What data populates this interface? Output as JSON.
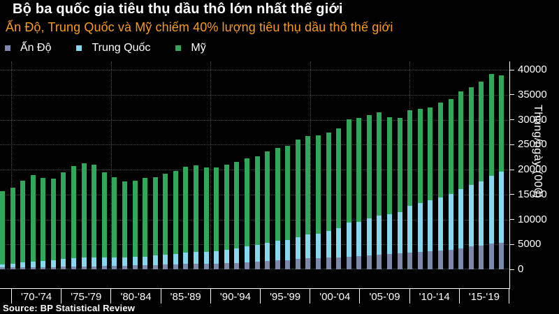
{
  "header": {
    "title": "Bộ ba quốc gia tiêu thụ dầu thô lớn nhất thế giới",
    "subtitle": "Ấn Độ, Trung Quốc và Mỹ chiếm 40% lượng tiêu thụ dầu thô thế giới"
  },
  "legend": [
    {
      "label": "Ấn Độ",
      "color": "#7d89aa"
    },
    {
      "label": "Trung Quốc",
      "color": "#87d7ee"
    },
    {
      "label": "Mỹ",
      "color": "#2fa85c"
    }
  ],
  "source": "Source: BP Statistical Review",
  "colors": {
    "background": "#000000",
    "title": "#ffffff",
    "subtitle_orange": "#f79b1c",
    "axis": "#ffffff",
    "gridline": "#4a4a4a"
  },
  "chart_data": {
    "type": "bar",
    "stacked": true,
    "title": "Bộ ba quốc gia tiêu thụ dầu thô lớn nhất thế giới",
    "ylabel": "Thùng/ngày (000)",
    "ylim": [
      0,
      41600
    ],
    "grid": true,
    "legend_position": "top-left",
    "years": {
      "start": 1970,
      "end": 2019
    },
    "x_tick_labels": [
      "'70-'74",
      "'75-'79",
      "'80-'84",
      "'85-'89",
      "'90-'94",
      "'95-'99",
      "'00-'04",
      "'05-'09",
      "'10-'14",
      "'15-'19"
    ],
    "y_ticks": [
      0,
      5000,
      10000,
      15000,
      20000,
      25000,
      30000,
      35000,
      40000
    ],
    "series": [
      {
        "name": "Ấn Độ",
        "color": "#7d89aa",
        "values": [
          388,
          413,
          444,
          478,
          480,
          490,
          520,
          550,
          590,
          630,
          643,
          700,
          740,
          780,
          820,
          895,
          940,
          990,
          1060,
          1130,
          1168,
          1190,
          1255,
          1300,
          1400,
          1575,
          1680,
          1765,
          1885,
          2075,
          2261,
          2290,
          2374,
          2420,
          2570,
          2606,
          2737,
          2941,
          3077,
          3237,
          3319,
          3488,
          3685,
          3727,
          3849,
          4164,
          4560,
          4766,
          5156,
          5271
        ]
      },
      {
        "name": "Trung Quốc",
        "color": "#87d7ee",
        "values": [
          616,
          776,
          912,
          1089,
          1230,
          1364,
          1530,
          1700,
          1825,
          1805,
          1765,
          1705,
          1660,
          1730,
          1740,
          1885,
          1975,
          2120,
          2275,
          2380,
          2320,
          2500,
          2662,
          2960,
          3160,
          3390,
          3610,
          3916,
          3979,
          4362,
          4766,
          4872,
          5288,
          5803,
          6772,
          6945,
          7440,
          7808,
          7937,
          8278,
          9436,
          9796,
          10230,
          10734,
          11209,
          11986,
          12302,
          12840,
          13525,
          14280
        ]
      },
      {
        "name": "Mỹ",
        "color": "#2fa85c",
        "values": [
          14710,
          15213,
          16367,
          17308,
          16653,
          16322,
          17461,
          18431,
          18847,
          18513,
          17056,
          16058,
          15296,
          15231,
          15726,
          15726,
          16281,
          16665,
          17283,
          17325,
          16988,
          16714,
          17033,
          17237,
          17719,
          17725,
          18309,
          18621,
          18917,
          19519,
          19701,
          19649,
          19761,
          20033,
          20732,
          20802,
          20687,
          20680,
          19498,
          18771,
          19180,
          18882,
          18490,
          18961,
          19106,
          19531,
          19687,
          19958,
          20500,
          19400
        ]
      }
    ]
  }
}
